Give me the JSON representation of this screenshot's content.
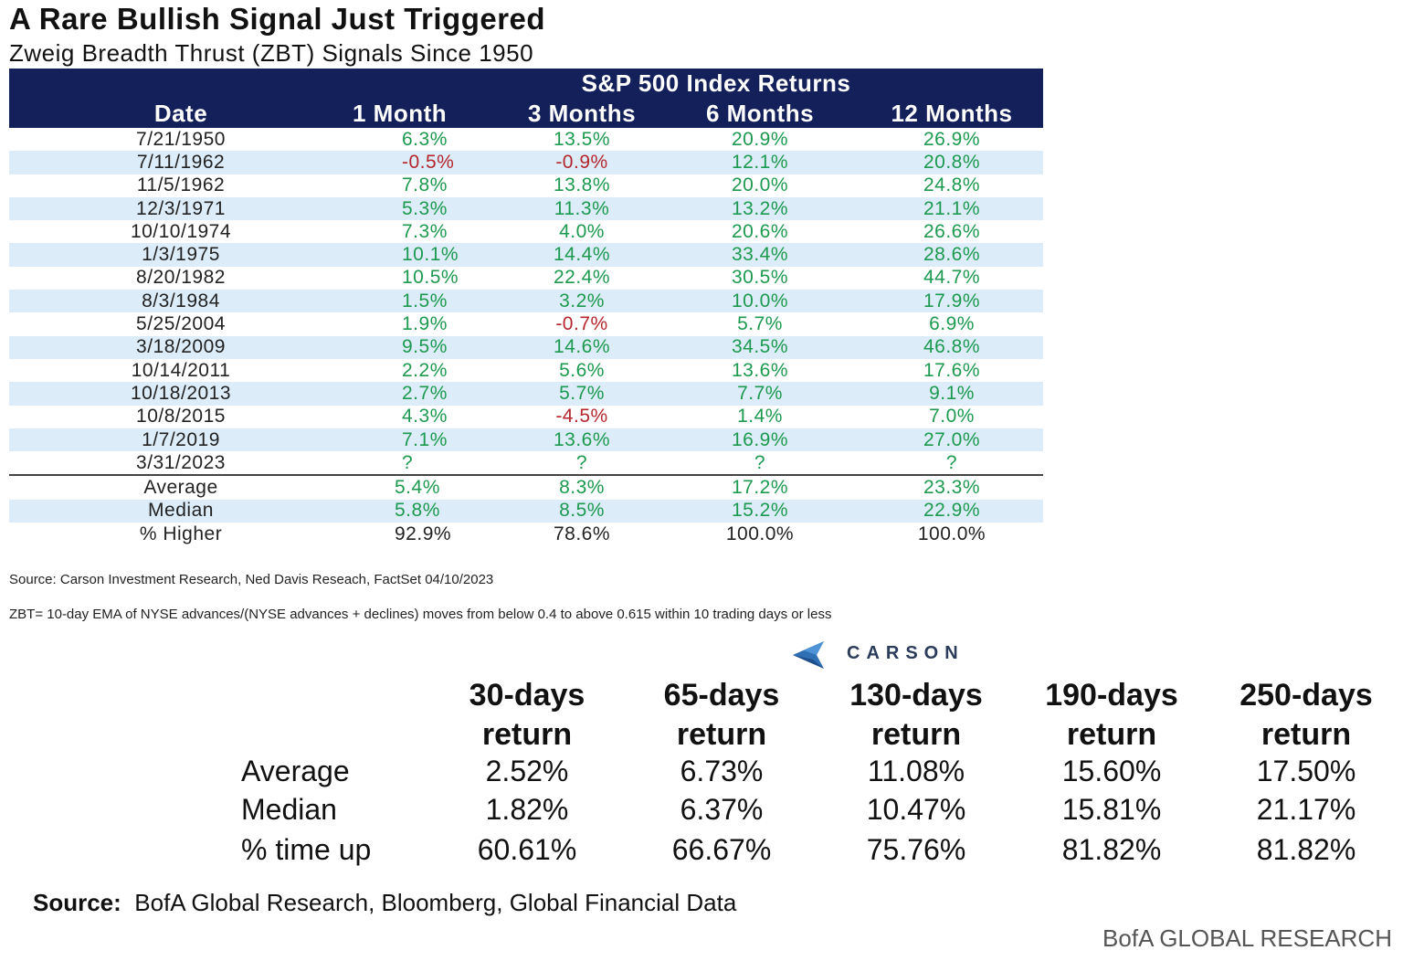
{
  "header": {
    "title": "A Rare Bullish Signal Just Triggered",
    "subtitle": "Zweig Breadth Thrust (ZBT) Signals Since 1950"
  },
  "chart_data": [
    {
      "type": "table",
      "title": "A Rare Bullish Signal Just Triggered",
      "subtitle": "Zweig Breadth Thrust (ZBT) Signals Since 1950",
      "group_header": "S&P 500 Index Returns",
      "columns": [
        "Date",
        "1 Month",
        "3 Months",
        "6 Months",
        "12 Months"
      ],
      "rows": [
        [
          "7/21/1950",
          "6.3%",
          "13.5%",
          "20.9%",
          "26.9%"
        ],
        [
          "7/11/1962",
          "-0.5%",
          "-0.9%",
          "12.1%",
          "20.8%"
        ],
        [
          "11/5/1962",
          "7.8%",
          "13.8%",
          "20.0%",
          "24.8%"
        ],
        [
          "12/3/1971",
          "5.3%",
          "11.3%",
          "13.2%",
          "21.1%"
        ],
        [
          "10/10/1974",
          "7.3%",
          "4.0%",
          "20.6%",
          "26.6%"
        ],
        [
          "1/3/1975",
          "10.1%",
          "14.4%",
          "33.4%",
          "28.6%"
        ],
        [
          "8/20/1982",
          "10.5%",
          "22.4%",
          "30.5%",
          "44.7%"
        ],
        [
          "8/3/1984",
          "1.5%",
          "3.2%",
          "10.0%",
          "17.9%"
        ],
        [
          "5/25/2004",
          "1.9%",
          "-0.7%",
          "5.7%",
          "6.9%"
        ],
        [
          "3/18/2009",
          "9.5%",
          "14.6%",
          "34.5%",
          "46.8%"
        ],
        [
          "10/14/2011",
          "2.2%",
          "5.6%",
          "13.6%",
          "17.6%"
        ],
        [
          "10/18/2013",
          "2.7%",
          "5.7%",
          "7.7%",
          "9.1%"
        ],
        [
          "10/8/2015",
          "4.3%",
          "-4.5%",
          "1.4%",
          "7.0%"
        ],
        [
          "1/7/2019",
          "7.1%",
          "13.6%",
          "16.9%",
          "27.0%"
        ],
        [
          "3/31/2023",
          "?",
          "?",
          "?",
          "?"
        ]
      ],
      "summary": [
        [
          "Average",
          "5.4%",
          "8.3%",
          "17.2%",
          "23.3%"
        ],
        [
          "Median",
          "5.8%",
          "8.5%",
          "15.2%",
          "22.9%"
        ],
        [
          "% Higher",
          "92.9%",
          "78.6%",
          "100.0%",
          "100.0%"
        ]
      ],
      "source": "Source: Carson Investment Research, Ned Davis Reseach, FactSet 04/10/2023",
      "definition": "ZBT= 10-day EMA of NYSE advances/(NYSE advances + declines) moves from below 0.4 to above 0.615 within 10 trading days or less",
      "brand": "CARSON",
      "colors": {
        "header_bg": "#14205a",
        "positive": "#1d9a50",
        "negative": "#b5262e",
        "band": "#dcecf8"
      }
    },
    {
      "type": "table",
      "columns": [
        {
          "line1": "30-days",
          "line2": "return"
        },
        {
          "line1": "65-days",
          "line2": "return"
        },
        {
          "line1": "130-days",
          "line2": "return"
        },
        {
          "line1": "190-days",
          "line2": "return"
        },
        {
          "line1": "250-days",
          "line2": "return"
        }
      ],
      "rows": [
        {
          "label": "Average",
          "values": [
            "2.52%",
            "6.73%",
            "11.08%",
            "15.60%",
            "17.50%"
          ]
        },
        {
          "label": "Median",
          "values": [
            "1.82%",
            "6.37%",
            "10.47%",
            "15.81%",
            "21.17%"
          ]
        },
        {
          "label": "% time up",
          "values": [
            "60.61%",
            "66.67%",
            "75.76%",
            "81.82%",
            "81.82%"
          ]
        }
      ],
      "source_label": "Source:",
      "source_text": "BofA Global Research, Bloomberg, Global Financial Data",
      "brand": "BofA GLOBAL RESEARCH"
    }
  ]
}
